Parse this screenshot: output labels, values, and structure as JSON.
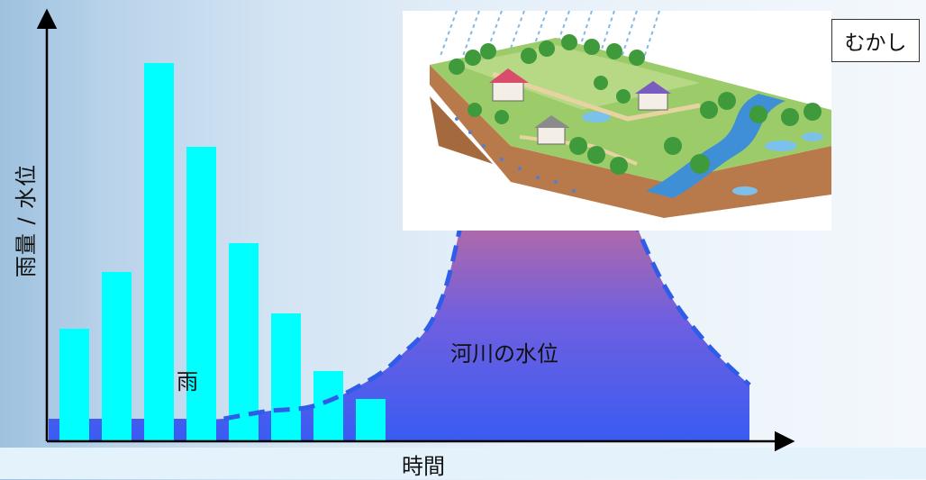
{
  "labels": {
    "y_axis": "雨量 / 水位",
    "x_axis": "時間",
    "rain": "雨",
    "river_level": "河川の水位",
    "era": "むかし"
  },
  "chart_data": {
    "type": "bar",
    "title": "",
    "xlabel": "時間",
    "ylabel": "雨量 / 水位",
    "series": [
      {
        "name": "雨",
        "values": [
          125,
          188,
          420,
          327,
          220,
          142,
          78,
          47
        ]
      }
    ],
    "river_level_curve": {
      "name": "河川の水位",
      "shape": "hydrograph",
      "values": [
        10,
        10,
        10,
        10,
        10,
        15,
        18,
        30,
        50,
        90,
        210,
        258,
        235,
        165,
        100,
        60,
        32
      ]
    },
    "ylim": [
      0,
      460
    ]
  },
  "colors": {
    "rain_bars": "#00ffff",
    "river_top": "#f47a2f",
    "river_bottom": "#3a5cf2",
    "dashed_line": "#2f5de8",
    "axis": "#000000"
  },
  "illustration": {
    "subject": "landscape-with-houses-forest-river-rain"
  }
}
